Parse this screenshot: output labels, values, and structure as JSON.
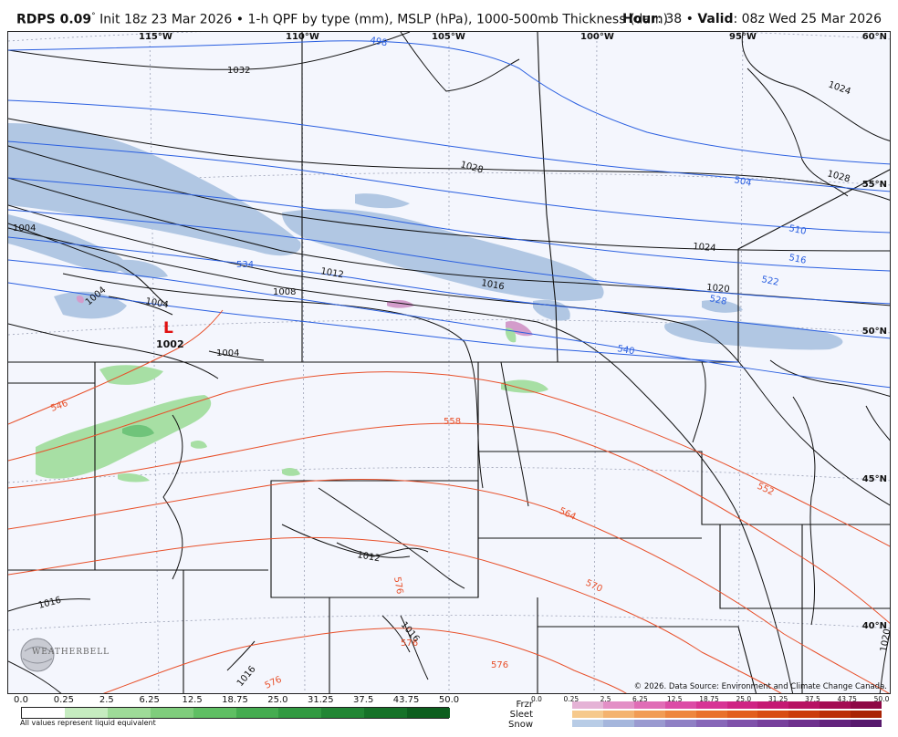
{
  "header": {
    "model": "RDPS 0.09",
    "degree": "°",
    "init": "Init 18z 23 Mar 2026",
    "bullet": "•",
    "product": "1-h QPF by type (mm), MSLP (hPa), 1000-500mb Thickness (dam)",
    "hour_label": "Hour",
    "hour_value": ": 38",
    "valid_label": "Valid",
    "valid_value": ": 08z Wed 25 Mar 2026"
  },
  "map": {
    "longitude_labels": [
      "115°W",
      "110°W",
      "105°W",
      "100°W",
      "95°W"
    ],
    "latitude_labels": [
      "60°N",
      "55°N",
      "50°N",
      "45°N",
      "40°N"
    ],
    "low_center": {
      "symbol": "L",
      "pressure": "1002"
    },
    "isobar_labels": [
      "1032",
      "1028",
      "1024",
      "1028",
      "1024",
      "1020",
      "1016",
      "1012",
      "1008",
      "1004",
      "1004",
      "1004",
      "1004",
      "1012",
      "1016",
      "1016",
      "1016",
      "1020"
    ],
    "thickness_labels_blue": [
      "498",
      "504",
      "510",
      "516",
      "522",
      "528",
      "534",
      "540"
    ],
    "thickness_labels_red": [
      "546",
      "558",
      "552",
      "564",
      "570",
      "576",
      "576",
      "576",
      "576"
    ],
    "copyright": "© 2026. Data Source: Environment and Climate Change Canada.",
    "logo_text": "WEATHERBELL",
    "colors": {
      "background": "#f4f6fd",
      "snow": "#b1c7e3",
      "mix": "#d39ccb",
      "rain_light": "#a7dfa4",
      "rain_mid": "#6fc47a",
      "isobar": "#111111",
      "thickness_cold": "#2a5fe0",
      "thickness_warm": "#e8502a"
    }
  },
  "legend": {
    "rain_ticks": [
      "0.0",
      "0.25",
      "2.5",
      "6.25",
      "12.5",
      "18.75",
      "25.0",
      "31.25",
      "37.5",
      "43.75",
      "50.0"
    ],
    "rain_colors": [
      "#ffffff",
      "#c6ecc0",
      "#9edb98",
      "#7fcd7c",
      "#5fbf63",
      "#45ac50",
      "#329a41",
      "#228634",
      "#167228",
      "#0d5e1e",
      "#064b15"
    ],
    "types": [
      "Frzr",
      "Sleet",
      "Snow"
    ],
    "mix_ticks": [
      "0.0",
      "0.25",
      "2.5",
      "6.25",
      "12.5",
      "18.75",
      "25.0",
      "31.25",
      "37.5",
      "43.75",
      "50.0"
    ],
    "frzr_colors": [
      "#e5b3d6",
      "#e38fc6",
      "#e06db6",
      "#dc4ca6",
      "#d73495",
      "#cf2384",
      "#c51973",
      "#b71263",
      "#a40c53",
      "#8e0845",
      "#770537"
    ],
    "sleet_colors": [
      "#f6c98c",
      "#f4b36f",
      "#f19c55",
      "#ee863e",
      "#e9712b",
      "#e25e1d",
      "#d84c12",
      "#cb3c0b",
      "#bb2e07",
      "#a92304",
      "#961a02"
    ],
    "snow_colors": [
      "#b8cce6",
      "#a5b6dc",
      "#9a9ad0",
      "#8f80c4",
      "#8767b8",
      "#7f52aa",
      "#77409c",
      "#6e318d",
      "#63247d",
      "#57196d",
      "#4a105d"
    ],
    "footnote": "All values represent liquid equivalent"
  }
}
